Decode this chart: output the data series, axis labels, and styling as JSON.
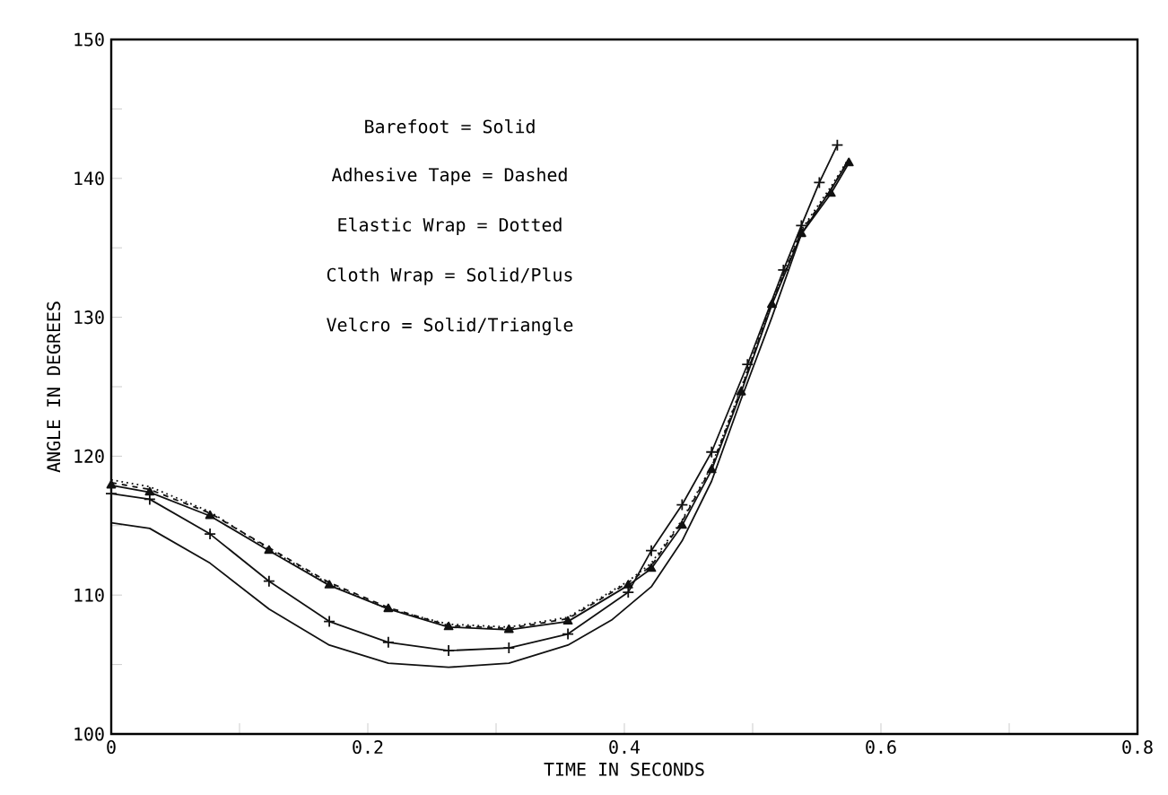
{
  "chart_data": {
    "type": "line",
    "xlabel": "TIME IN SECONDS",
    "ylabel": "ANGLE IN DEGREES",
    "annotations": [
      "Barefoot = Solid",
      "Adhesive Tape = Dashed",
      "Elastic Wrap = Dotted",
      "Cloth Wrap = Solid/Plus",
      "Velcro = Solid/Triangle"
    ],
    "xlim": [
      0,
      0.8
    ],
    "ylim": [
      100,
      150
    ],
    "xticks": [
      {
        "value": 0,
        "label": "0"
      },
      {
        "value": 0.1,
        "label": null
      },
      0.2,
      {
        "value": 0.3,
        "label": null
      },
      0.4,
      {
        "value": 0.5,
        "label": null
      },
      0.6,
      {
        "value": 0.7,
        "label": null
      },
      0.8
    ],
    "yticks": [
      100,
      {
        "value": 105,
        "label": null
      },
      110,
      {
        "value": 115,
        "label": null
      },
      120,
      {
        "value": 125,
        "label": null
      },
      130,
      {
        "value": 135,
        "label": null
      },
      140,
      {
        "value": 145,
        "label": null
      },
      150
    ],
    "series": [
      {
        "color": "#111111",
        "line_style": "solid",
        "marker": "none",
        "x": [
          0,
          0.03,
          0.077,
          0.123,
          0.17,
          0.216,
          0.263,
          0.31,
          0.356,
          0.39,
          0.421,
          0.445,
          0.468,
          0.491,
          0.515,
          0.538,
          0.561,
          0.573
        ],
        "values": [
          115.2,
          114.8,
          112.3,
          109.0,
          106.4,
          105.1,
          104.8,
          105.1,
          106.4,
          108.2,
          110.6,
          113.9,
          118.2,
          124.1,
          130.0,
          136.0,
          139.2,
          141.0
        ]
      },
      {
        "color": "#111111",
        "line_style": "dashed",
        "marker": "none",
        "x": [
          0,
          0.03,
          0.077,
          0.123,
          0.17,
          0.216,
          0.263,
          0.31,
          0.356,
          0.403,
          0.421,
          0.445,
          0.468,
          0.491,
          0.515,
          0.538,
          0.561,
          0.572
        ],
        "values": [
          118.1,
          117.6,
          115.9,
          113.4,
          110.9,
          109.1,
          107.8,
          107.6,
          108.3,
          110.9,
          112.1,
          115.3,
          119.2,
          124.8,
          131.0,
          136.2,
          139.2,
          140.9
        ]
      },
      {
        "color": "#111111",
        "line_style": "dotted",
        "marker": "none",
        "x": [
          0,
          0.03,
          0.077,
          0.123,
          0.17,
          0.216,
          0.263,
          0.31,
          0.356,
          0.403,
          0.421,
          0.445,
          0.468,
          0.491,
          0.515,
          0.538,
          0.561,
          0.574
        ],
        "values": [
          118.3,
          117.8,
          116.0,
          113.3,
          110.8,
          109.0,
          107.9,
          107.7,
          108.4,
          111.0,
          112.3,
          115.4,
          119.3,
          124.9,
          131.1,
          136.3,
          139.4,
          141.3
        ]
      },
      {
        "color": "#111111",
        "line_style": "solid",
        "marker": "cross",
        "x": [
          0,
          0.03,
          0.077,
          0.123,
          0.17,
          0.216,
          0.263,
          0.31,
          0.356,
          0.403,
          0.421,
          0.445,
          0.468,
          0.496,
          0.524,
          0.538,
          0.552,
          0.566
        ],
        "values": [
          117.3,
          116.9,
          114.4,
          111.0,
          108.1,
          106.6,
          106.0,
          106.2,
          107.2,
          110.2,
          113.2,
          116.5,
          120.3,
          126.6,
          133.4,
          136.6,
          139.7,
          142.4
        ]
      },
      {
        "color": "#111111",
        "line_style": "solid",
        "marker": "triangle",
        "x": [
          0,
          0.03,
          0.077,
          0.123,
          0.17,
          0.216,
          0.263,
          0.31,
          0.356,
          0.403,
          0.421,
          0.445,
          0.468,
          0.491,
          0.515,
          0.538,
          0.561,
          0.575
        ],
        "values": [
          117.9,
          117.4,
          115.7,
          113.2,
          110.7,
          109.0,
          107.7,
          107.5,
          108.1,
          110.7,
          111.9,
          115.0,
          119.0,
          124.6,
          130.9,
          136.0,
          138.9,
          141.1
        ]
      }
    ]
  }
}
